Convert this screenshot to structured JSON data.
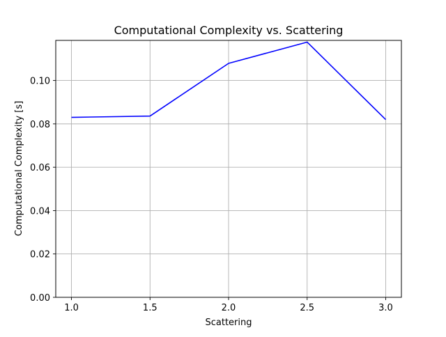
{
  "chart_data": {
    "type": "line",
    "title": "Computational Complexity vs. Scattering",
    "xlabel": "Scattering",
    "ylabel": "Computational Complexity [s]",
    "x": [
      1.0,
      1.5,
      2.0,
      2.5,
      3.0
    ],
    "series": [
      {
        "values": [
          0.083,
          0.0836,
          0.1079,
          0.1177,
          0.082
        ],
        "color": "#0000ff"
      }
    ],
    "xlim": [
      0.9,
      3.1
    ],
    "ylim": [
      0.0,
      0.1185
    ],
    "xticks": [
      1.0,
      1.5,
      2.0,
      2.5,
      3.0
    ],
    "xtick_labels": [
      "1.0",
      "1.5",
      "2.0",
      "2.5",
      "3.0"
    ],
    "yticks": [
      0.0,
      0.02,
      0.04,
      0.06,
      0.08,
      0.1
    ],
    "ytick_labels": [
      "0.00",
      "0.02",
      "0.04",
      "0.06",
      "0.08",
      "0.10"
    ],
    "grid": true,
    "legend": false
  }
}
